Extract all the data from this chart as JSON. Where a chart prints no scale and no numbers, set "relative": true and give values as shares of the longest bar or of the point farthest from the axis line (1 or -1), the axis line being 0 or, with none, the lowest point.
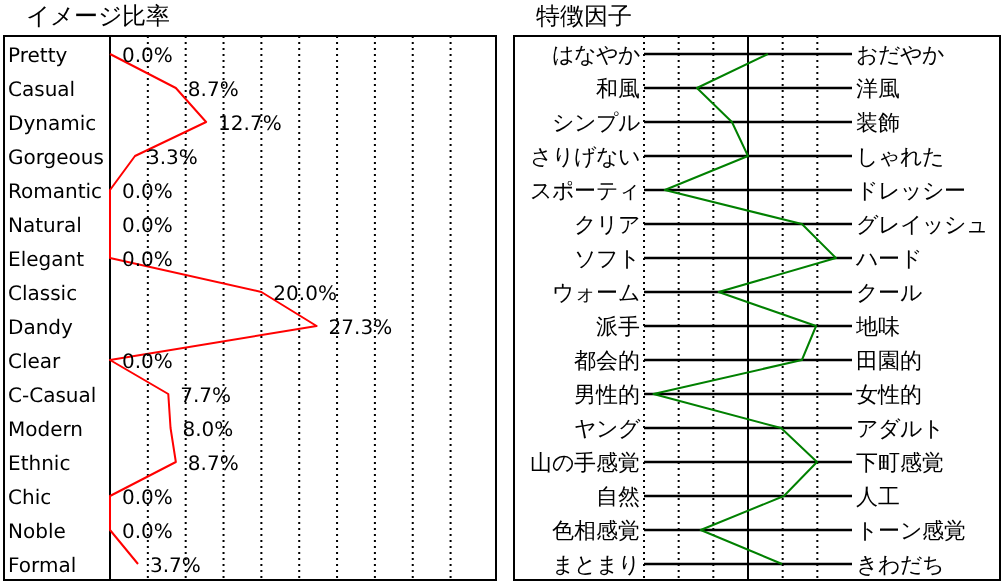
{
  "chart_data": [
    {
      "type": "line",
      "title": "イメージ比率",
      "orientation": "horizontal",
      "categories": [
        "Pretty",
        "Casual",
        "Dynamic",
        "Gorgeous",
        "Romantic",
        "Natural",
        "Elegant",
        "Classic",
        "Dandy",
        "Clear",
        "C-Casual",
        "Modern",
        "Ethnic",
        "Chic",
        "Noble",
        "Formal"
      ],
      "series": [
        {
          "color": "#ff0000",
          "values": [
            0,
            8.7,
            12.7,
            3.3,
            0,
            0,
            0,
            20,
            27.3,
            0,
            7.7,
            8,
            8.7,
            0,
            0,
            3.7
          ],
          "value_labels": [
            "0.0%",
            "8.7%",
            "12.7%",
            "3.3%",
            "0.0%",
            "0.0%",
            "0.0%",
            "20.0%",
            "27.3%",
            "0.0%",
            "7.7%",
            "8.0%",
            "8.7%",
            "0.0%",
            "0.0%",
            "3.7%"
          ]
        }
      ],
      "xlim": [
        0,
        51
      ],
      "xticks": [
        {
          "value": 5,
          "label": null
        },
        {
          "value": 10,
          "label": null
        },
        {
          "value": 15,
          "label": null
        },
        {
          "value": 20,
          "label": null
        },
        {
          "value": 25,
          "label": null
        },
        {
          "value": 30,
          "label": null
        },
        {
          "value": 35,
          "label": null
        },
        {
          "value": 40,
          "label": null
        },
        {
          "value": 45,
          "label": null
        }
      ],
      "grid": "x",
      "tick_labels": "y"
    },
    {
      "type": "line",
      "title": "特徴因子",
      "orientation": "horizontal",
      "relative": true,
      "categories": [
        "はなやか",
        "和風",
        "シンプル",
        "さりげない",
        "スポーティ",
        "クリア",
        "ソフト",
        "ウォーム",
        "派手",
        "都会的",
        "男性的",
        "ヤング",
        "山の手感覚",
        "自然",
        "色相感覚",
        "まとまり"
      ],
      "y2_categories": [
        "おだやか",
        "洋風",
        "装飾",
        "しゃれた",
        "ドレッシー",
        "グレイッシュ",
        "ハード",
        "クール",
        "地味",
        "田園的",
        "女性的",
        "アダルト",
        "下町感覚",
        "人工",
        "トーン感覚",
        "きわだち"
      ],
      "series": [
        {
          "color": "#008000",
          "values": [
            0.21,
            -0.54,
            -0.17,
            0,
            -0.88,
            0.57,
            0.93,
            -0.31,
            0.72,
            0.57,
            -1,
            0.35,
            0.73,
            0.38,
            -0.5,
            0.36
          ]
        }
      ],
      "grid": true,
      "tick_labels": "y"
    }
  ]
}
